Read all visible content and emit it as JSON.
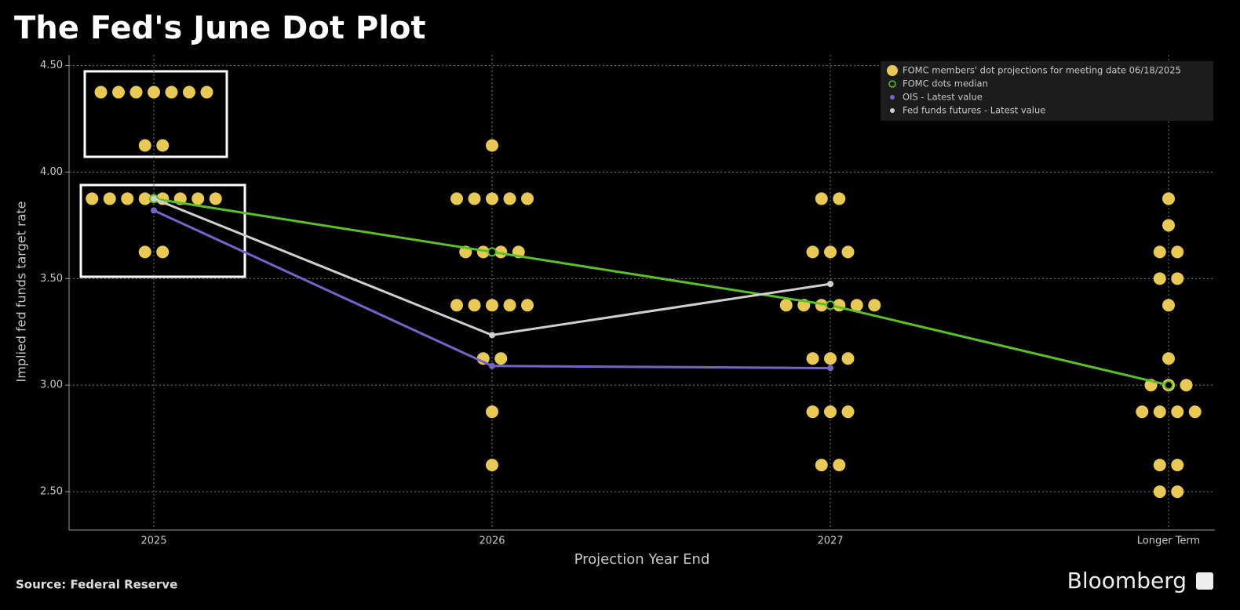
{
  "chart_data": {
    "type": "scatter",
    "title": "The Fed's June Dot Plot",
    "x_label": "Projection Year End",
    "y_label": "Implied fed funds target rate",
    "source": "Source: Federal Reserve",
    "brand": "Bloomberg",
    "categories": [
      "2025",
      "2026",
      "2027",
      "Longer Term"
    ],
    "ylim": [
      2.32,
      4.55
    ],
    "yticks": [
      {
        "value": 2.5,
        "label": "2.50"
      },
      {
        "value": 3,
        "label": "3.00"
      },
      {
        "value": 3.5,
        "label": "3.50"
      },
      {
        "value": 4,
        "label": "4.00"
      },
      {
        "value": 4.5,
        "label": "4.50"
      }
    ],
    "grid": true,
    "legend": "top-right",
    "series": [
      {
        "name": "FOMC members' dot projections for meeting date 06/18/2025",
        "color": "#e8c955",
        "values": [
          [
            4.375,
            4.375,
            4.375,
            4.375,
            4.375,
            4.375,
            4.375,
            4.125,
            4.125,
            3.875,
            3.875,
            3.875,
            3.875,
            3.875,
            3.875,
            3.875,
            3.875,
            3.625,
            3.625
          ],
          [
            4.125,
            3.875,
            3.875,
            3.875,
            3.875,
            3.875,
            3.625,
            3.625,
            3.625,
            3.625,
            3.375,
            3.375,
            3.375,
            3.375,
            3.375,
            3.125,
            3.125,
            2.875,
            2.625
          ],
          [
            3.875,
            3.875,
            3.625,
            3.625,
            3.625,
            3.375,
            3.375,
            3.375,
            3.375,
            3.375,
            3.375,
            3.125,
            3.125,
            3.125,
            2.875,
            2.875,
            2.875,
            2.625,
            2.625
          ],
          [
            3.875,
            3.75,
            3.625,
            3.625,
            3.5,
            3.5,
            3.375,
            3.125,
            3,
            3,
            3,
            2.875,
            2.875,
            2.875,
            2.875,
            2.625,
            2.625,
            2.5,
            2.5
          ]
        ]
      },
      {
        "name": "FOMC dots median",
        "color": "#5cbf2a",
        "values": [
          3.875,
          3.625,
          3.375,
          3
        ]
      },
      {
        "name": "OIS - Latest value",
        "color": "#7565c9",
        "values": [
          3.82,
          3.09,
          3.08,
          null
        ]
      },
      {
        "name": "Fed funds futures - Latest value",
        "color": "#cfcfcf",
        "values": [
          3.875,
          3.235,
          3.475,
          null
        ]
      }
    ]
  }
}
